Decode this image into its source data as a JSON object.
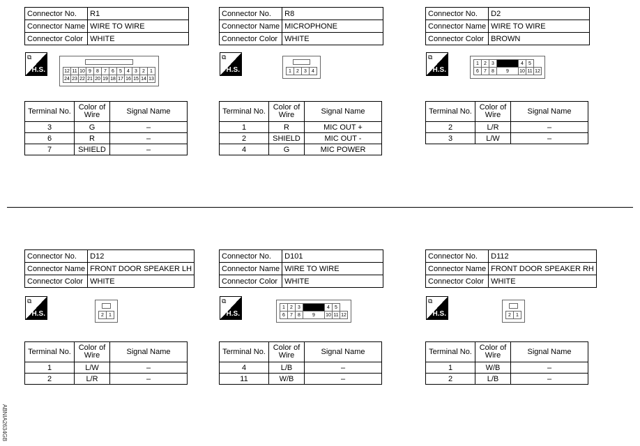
{
  "labels": {
    "connector_no": "Connector No.",
    "connector_name": "Connector Name",
    "connector_color": "Connector Color",
    "terminal_no": "Terminal No.",
    "color_of_wire": "Color of Wire",
    "signal_name": "Signal Name",
    "hs": "H.S."
  },
  "connectors": [
    {
      "no": "R1",
      "name": "WIRE TO WIRE",
      "color": "WHITE",
      "latch": true,
      "pins": [
        [
          "12",
          "11",
          "10",
          "9",
          "8",
          "7",
          "6",
          "5",
          "4",
          "3",
          "2",
          "1"
        ],
        [
          "24",
          "23",
          "22",
          "21",
          "20",
          "19",
          "18",
          "17",
          "16",
          "15",
          "14",
          "13"
        ]
      ],
      "terminals": [
        [
          "3",
          "G",
          "–"
        ],
        [
          "6",
          "R",
          "–"
        ],
        [
          "7",
          "SHIELD",
          "–"
        ]
      ]
    },
    {
      "no": "R8",
      "name": "MICROPHONE",
      "color": "WHITE",
      "latch": true,
      "pins": [
        [
          "1",
          "2",
          "3",
          "4"
        ]
      ],
      "terminals": [
        [
          "1",
          "R",
          "MIC OUT +"
        ],
        [
          "2",
          "SHIELD",
          "MIC OUT -"
        ],
        [
          "4",
          "G",
          "MIC POWER"
        ]
      ]
    },
    {
      "no": "D2",
      "name": "WIRE TO WIRE",
      "color": "BROWN",
      "latch": false,
      "pins": [
        [
          "1",
          "2",
          "3",
          "■",
          "4",
          "5"
        ],
        [
          "6",
          "7",
          "8",
          "9",
          "10",
          "11",
          "12"
        ]
      ],
      "terminals": [
        [
          "2",
          "L/R",
          "–"
        ],
        [
          "3",
          "L/W",
          "–"
        ]
      ]
    },
    {
      "no": "D12",
      "name": "FRONT DOOR SPEAKER LH",
      "color": "WHITE",
      "latch": true,
      "pins": [
        [
          "2",
          "1"
        ]
      ],
      "terminals": [
        [
          "1",
          "L/W",
          "–"
        ],
        [
          "2",
          "L/R",
          "–"
        ]
      ]
    },
    {
      "no": "D101",
      "name": "WIRE TO WIRE",
      "color": "WHITE",
      "latch": false,
      "pins": [
        [
          "1",
          "2",
          "3",
          "■",
          "4",
          "5"
        ],
        [
          "6",
          "7",
          "8",
          "9",
          "10",
          "11",
          "12"
        ]
      ],
      "terminals": [
        [
          "4",
          "L/B",
          "–"
        ],
        [
          "11",
          "W/B",
          "–"
        ]
      ]
    },
    {
      "no": "D112",
      "name": "FRONT DOOR SPEAKER RH",
      "color": "WHITE",
      "latch": true,
      "pins": [
        [
          "2",
          "1"
        ]
      ],
      "terminals": [
        [
          "1",
          "W/B",
          "–"
        ],
        [
          "2",
          "L/B",
          "–"
        ]
      ]
    }
  ],
  "figure_code": "ABNIA2634GB"
}
